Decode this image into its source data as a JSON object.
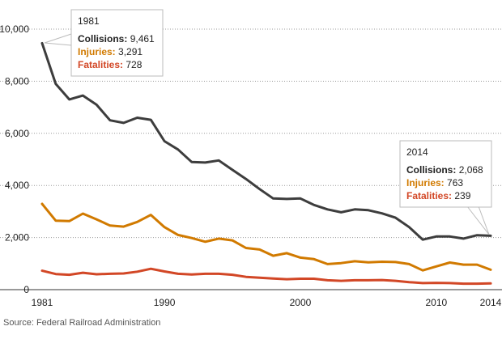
{
  "chart_data": {
    "type": "line",
    "title": "",
    "xlabel": "",
    "ylabel": "",
    "ylim": [
      0,
      10000
    ],
    "xlim": [
      1981,
      2014
    ],
    "yticks": [
      0,
      2000,
      4000,
      6000,
      8000,
      10000
    ],
    "ytick_labels": [
      "0",
      "2,000",
      "4,000",
      "6,000",
      "8,000",
      "10,000"
    ],
    "xticks": [
      1981,
      1990,
      2000,
      2010,
      2014
    ],
    "xtick_labels": [
      "1981",
      "1990",
      "2000",
      "2010",
      "2014"
    ],
    "grid": "horizontal dotted",
    "x": [
      1981,
      1982,
      1983,
      1984,
      1985,
      1986,
      1987,
      1988,
      1989,
      1990,
      1991,
      1992,
      1993,
      1994,
      1995,
      1996,
      1997,
      1998,
      1999,
      2000,
      2001,
      2002,
      2003,
      2004,
      2005,
      2006,
      2007,
      2008,
      2009,
      2010,
      2011,
      2012,
      2013,
      2014
    ],
    "series": [
      {
        "name": "Collisions",
        "color": "#3d3d3d",
        "values": [
          9461,
          7900,
          7300,
          7450,
          7100,
          6500,
          6400,
          6600,
          6520,
          5700,
          5380,
          4900,
          4880,
          4960,
          4600,
          4250,
          3860,
          3500,
          3480,
          3500,
          3250,
          3080,
          2970,
          3080,
          3050,
          2930,
          2760,
          2400,
          1920,
          2040,
          2040,
          1960,
          2090,
          2068
        ]
      },
      {
        "name": "Injuries",
        "color": "#d17a00",
        "values": [
          3291,
          2650,
          2630,
          2920,
          2700,
          2460,
          2420,
          2600,
          2870,
          2400,
          2100,
          1980,
          1840,
          1960,
          1890,
          1600,
          1540,
          1300,
          1400,
          1230,
          1170,
          980,
          1020,
          1090,
          1050,
          1070,
          1060,
          980,
          740,
          890,
          1040,
          960,
          960,
          763
        ]
      },
      {
        "name": "Fatalities",
        "color": "#d24726",
        "values": [
          728,
          600,
          570,
          650,
          590,
          610,
          620,
          690,
          800,
          700,
          610,
          580,
          610,
          610,
          570,
          490,
          460,
          430,
          400,
          420,
          420,
          360,
          340,
          360,
          360,
          370,
          340,
          290,
          250,
          260,
          250,
          230,
          230,
          239
        ]
      }
    ],
    "annotations": [
      {
        "year": "1981",
        "collisions_label": "Collisions:",
        "collisions_value": "9,461",
        "injuries_label": "Injuries:",
        "injuries_value": "3,291",
        "fatalities_label": "Fatalities:",
        "fatalities_value": "728"
      },
      {
        "year": "2014",
        "collisions_label": "Collisions:",
        "collisions_value": "2,068",
        "injuries_label": "Injuries:",
        "injuries_value": "763",
        "fatalities_label": "Fatalities:",
        "fatalities_value": "239"
      }
    ]
  },
  "source": "Source: Federal Railroad Administration",
  "colors": {
    "grid": "#999999",
    "axis": "#333333",
    "callout_border": "#bbbbbb"
  }
}
